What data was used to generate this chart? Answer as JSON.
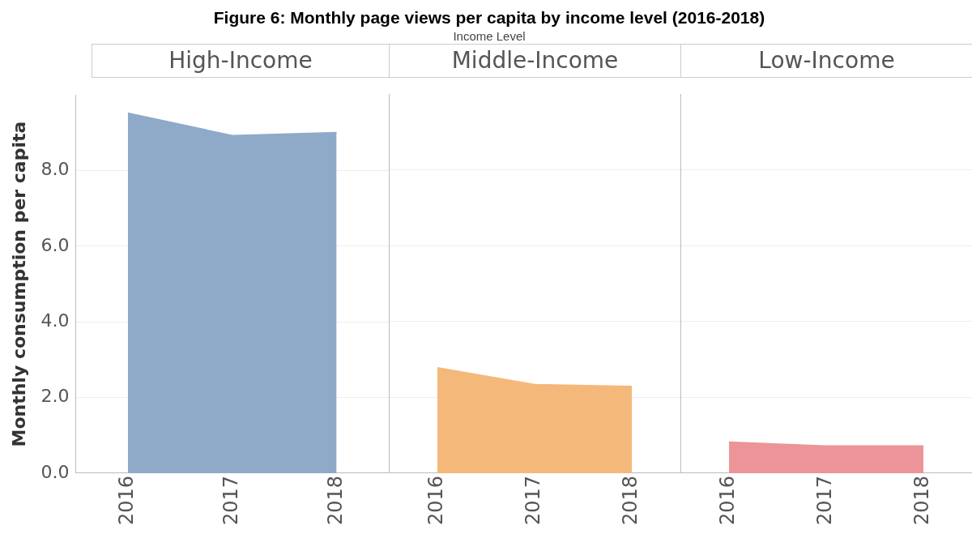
{
  "chart_data": [
    {
      "type": "area",
      "title": "High-Income",
      "annotations": [
        "Figure 6: Monthly page views per capita by income level (2016-2018)",
        "Income Level"
      ],
      "ylabel": "Monthly consumption per capita",
      "categories": [
        "2016",
        "2017",
        "2018"
      ],
      "series": [
        {
          "color": "#8eaac8",
          "values": [
            9.52,
            8.93,
            9.01
          ]
        }
      ],
      "ylim": [
        0,
        10
      ],
      "yticks": [
        {
          "value": 0,
          "label": "0.0"
        },
        {
          "value": 2,
          "label": "2.0"
        },
        {
          "value": 4,
          "label": "4.0"
        },
        {
          "value": 6,
          "label": "6.0"
        },
        {
          "value": 8,
          "label": "8.0"
        }
      ],
      "grid": "y",
      "legend": false
    },
    {
      "type": "area",
      "title": "Middle-Income",
      "categories": [
        "2016",
        "2017",
        "2018"
      ],
      "series": [
        {
          "color": "#f4b87a",
          "values": [
            2.78,
            2.34,
            2.29
          ]
        }
      ],
      "ylim": [
        0,
        10
      ],
      "yticks": [
        {
          "value": 0,
          "label": null
        },
        {
          "value": 2,
          "label": null
        },
        {
          "value": 4,
          "label": null
        },
        {
          "value": 6,
          "label": null
        },
        {
          "value": 8,
          "label": null
        }
      ],
      "grid": "y",
      "legend": false,
      "tick_labels": "x"
    },
    {
      "type": "area",
      "title": "Low-Income",
      "categories": [
        "2016",
        "2017",
        "2018"
      ],
      "series": [
        {
          "color": "#ec9497",
          "values": [
            0.82,
            0.72,
            0.72
          ]
        }
      ],
      "ylim": [
        0,
        10
      ],
      "yticks": [
        {
          "value": 0,
          "label": null
        },
        {
          "value": 2,
          "label": null
        },
        {
          "value": 4,
          "label": null
        },
        {
          "value": 6,
          "label": null
        },
        {
          "value": 8,
          "label": null
        }
      ],
      "grid": "y",
      "legend": false,
      "tick_labels": "x"
    }
  ]
}
